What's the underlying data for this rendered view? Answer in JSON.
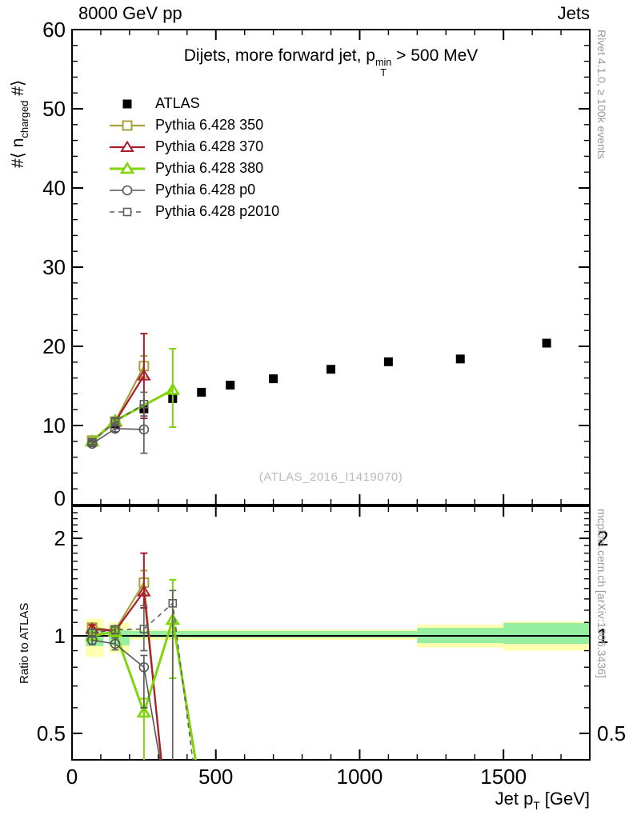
{
  "page": {
    "header_left": "8000 GeV pp",
    "header_right": "Jets",
    "watermark": "(ATLAS_2016_I1419070)",
    "right_label_top": "Rivet 4.1.0, ≥ 100k events",
    "right_label_bottom": "mcplots.cern.ch [arXiv:1306.3436]"
  },
  "chart_data": {
    "type": "line",
    "title_parts": {
      "pre": "Dijets, more forward jet, p",
      "sup": "min",
      "sub": "T",
      "post": " > 500 MeV"
    },
    "xlabel_parts": {
      "pre": "Jet p",
      "sub": "T",
      "post": " [GeV]"
    },
    "ylabel_top_parts": {
      "pre": "#⟨ n",
      "sub": "charged",
      "post": " #⟩"
    },
    "ylabel_ratio": "Ratio to ATLAS",
    "x_range": [
      0,
      1800
    ],
    "y_range_top": [
      0,
      60
    ],
    "ratio_range": [
      0.414,
      2.51
    ],
    "ratio_scale": "log",
    "x_ticks": [
      0,
      500,
      1000,
      1500
    ],
    "x_minor_step": 100,
    "y_ticks_top": [
      0,
      10,
      20,
      30,
      40,
      50,
      60
    ],
    "y_minor_step_top": 2,
    "ratio_ticks": [
      0.5,
      1,
      2
    ],
    "grid": false,
    "legend_position": "top-left",
    "band_colors": {
      "outer": "#ffffb0",
      "inner": "#96efa0"
    },
    "uncertainty_bands": [
      {
        "x0": 48,
        "x1": 110,
        "outer": [
          0.86,
          1.13
        ],
        "inner": [
          0.93,
          1.045
        ]
      },
      {
        "x0": 128,
        "x1": 200,
        "outer": [
          0.885,
          1.1
        ],
        "inner": [
          0.935,
          1.04
        ]
      },
      {
        "x0": 200,
        "x1": 1200,
        "outer": [
          0.972,
          1.046
        ],
        "inner": [
          0.988,
          1.035
        ]
      },
      {
        "x0": 1200,
        "x1": 1500,
        "outer": [
          0.92,
          1.083
        ],
        "inner": [
          0.95,
          1.058
        ]
      },
      {
        "x0": 1500,
        "x1": 1800,
        "outer": [
          0.9,
          1.108
        ],
        "inner": [
          0.944,
          1.096
        ]
      }
    ],
    "series": [
      {
        "name": "ATLAS",
        "color": "#000000",
        "marker": "square-filled",
        "line": "none",
        "lw": 0,
        "mlw": 0,
        "top": [
          [
            70,
            7.85
          ],
          [
            150,
            10.2
          ],
          [
            250,
            12.1
          ],
          [
            350,
            13.4
          ],
          [
            450,
            14.2
          ],
          [
            550,
            15.1
          ],
          [
            700,
            15.9
          ],
          [
            900,
            17.1
          ],
          [
            1100,
            18.05
          ],
          [
            1350,
            18.4
          ],
          [
            1650,
            20.4
          ]
        ],
        "ratio": []
      },
      {
        "name": "Pythia 6.428 350",
        "color": "#a6a13b",
        "marker": "square-open",
        "line": "solid",
        "lw": 2.2,
        "mlw": 2,
        "top": [
          [
            70,
            8.1,
            0.3,
            0.3
          ],
          [
            150,
            10.5,
            0.3,
            0.3
          ],
          [
            250,
            17.5,
            1.3,
            1.4
          ]
        ],
        "ratio": [
          [
            70,
            1.06,
            0.03,
            0.03
          ],
          [
            150,
            1.04,
            0.03,
            0.03
          ],
          [
            250,
            1.46,
            0.13,
            0.12
          ]
        ],
        "ratio_tail": [
          320,
          0.33
        ]
      },
      {
        "name": "Pythia 6.428 370",
        "color": "#a81c2c",
        "marker": "triangle-open",
        "line": "solid",
        "lw": 2.2,
        "mlw": 2,
        "top": [
          [
            70,
            8.0,
            0.3,
            0.3
          ],
          [
            150,
            10.45,
            0.3,
            0.3
          ],
          [
            250,
            16.3,
            5.3,
            5.4
          ]
        ],
        "ratio": [
          [
            70,
            1.05,
            0.03,
            0.03
          ],
          [
            150,
            1.035,
            0.03,
            0.03
          ],
          [
            250,
            1.37,
            0.43,
            0.15
          ]
        ],
        "ratio_tail": [
          322,
          0.33
        ]
      },
      {
        "name": "Pythia 6.428 380",
        "color": "#7fd40a",
        "marker": "triangle-open",
        "line": "solid",
        "lw": 3,
        "mlw": 2.6,
        "top": [
          [
            70,
            8.0,
            0.3,
            0.3
          ],
          [
            150,
            10.6,
            0.3,
            0.3
          ],
          [
            350,
            14.5,
            5.2,
            4.7
          ]
        ],
        "ratio": [
          [
            70,
            1.0,
            0.03,
            0.03
          ],
          [
            150,
            1.03,
            0.04,
            0.04
          ],
          [
            250,
            0.58,
            0.06,
            0.18
          ],
          [
            350,
            1.12,
            0.37,
            0.38
          ]
        ],
        "ratio_tail": [
          450,
          0.32
        ]
      },
      {
        "name": "Pythia 6.428 p0",
        "color": "#555555",
        "marker": "circle-open",
        "line": "solid",
        "lw": 1.6,
        "mlw": 1.6,
        "top": [
          [
            70,
            7.7,
            0.3,
            0.3
          ],
          [
            150,
            9.6,
            0.4,
            0.4
          ],
          [
            250,
            9.5,
            1.7,
            3.0
          ]
        ],
        "ratio": [
          [
            70,
            0.97,
            0.03,
            0.03
          ],
          [
            150,
            0.945,
            0.04,
            0.04
          ],
          [
            250,
            0.8,
            0.07,
            0.2
          ]
        ],
        "ratio_tail": [
          325,
          0.33
        ]
      },
      {
        "name": "Pythia 6.428 p2010",
        "color": "#5f5f5f",
        "marker": "square-open-small",
        "line": "dashed",
        "lw": 1.6,
        "mlw": 1.6,
        "top": [
          [
            70,
            7.9,
            0.3,
            0.3
          ],
          [
            150,
            10.55,
            0.3,
            0.3
          ],
          [
            250,
            12.7,
            1.5,
            1.5
          ]
        ],
        "ratio": [
          [
            70,
            1.02,
            0.03,
            0.03
          ],
          [
            150,
            1.045,
            0.03,
            0.03
          ],
          [
            250,
            1.05,
            0.19,
            0.15
          ],
          [
            350,
            1.26,
            0.12,
            0.85
          ]
        ],
        "ratio_tail": [
          440,
          0.3
        ]
      }
    ]
  }
}
